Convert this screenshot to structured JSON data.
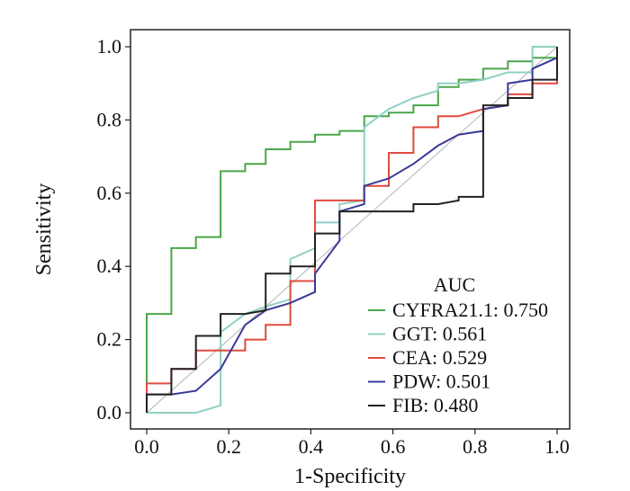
{
  "chart_data": {
    "type": "line",
    "title": "",
    "xlabel": "1-Specificity",
    "ylabel": "Sensitivity",
    "xlim": [
      0.0,
      1.0
    ],
    "ylim": [
      0.0,
      1.0
    ],
    "xticks": [
      0.0,
      0.2,
      0.4,
      0.6,
      0.8,
      1.0
    ],
    "yticks": [
      0.0,
      0.2,
      0.4,
      0.6,
      0.8,
      1.0
    ],
    "x_tick_labels": [
      "0.0",
      "0.2",
      "0.4",
      "0.6",
      "0.8",
      "1.0"
    ],
    "y_tick_labels": [
      "0.0",
      "0.2",
      "0.4",
      "0.6",
      "0.8",
      "1.0"
    ],
    "grid": false,
    "reference_line": {
      "from": [
        0,
        0
      ],
      "to": [
        1,
        1
      ],
      "color": "#c0c0c0"
    },
    "legend": {
      "title": "AUC",
      "position": "bottom-right"
    },
    "series": [
      {
        "name": "CYFRA21.1",
        "auc": "0.750",
        "label": "CYFRA21.1: 0.750",
        "color": "#4aa64a",
        "points": [
          [
            0,
            0
          ],
          [
            0,
            0.27
          ],
          [
            0.06,
            0.27
          ],
          [
            0.06,
            0.45
          ],
          [
            0.12,
            0.45
          ],
          [
            0.12,
            0.48
          ],
          [
            0.18,
            0.48
          ],
          [
            0.18,
            0.66
          ],
          [
            0.24,
            0.66
          ],
          [
            0.24,
            0.68
          ],
          [
            0.29,
            0.68
          ],
          [
            0.29,
            0.72
          ],
          [
            0.35,
            0.72
          ],
          [
            0.35,
            0.74
          ],
          [
            0.41,
            0.74
          ],
          [
            0.41,
            0.76
          ],
          [
            0.47,
            0.76
          ],
          [
            0.47,
            0.77
          ],
          [
            0.53,
            0.77
          ],
          [
            0.53,
            0.81
          ],
          [
            0.59,
            0.81
          ],
          [
            0.59,
            0.82
          ],
          [
            0.65,
            0.82
          ],
          [
            0.65,
            0.84
          ],
          [
            0.71,
            0.84
          ],
          [
            0.71,
            0.89
          ],
          [
            0.76,
            0.89
          ],
          [
            0.76,
            0.91
          ],
          [
            0.82,
            0.91
          ],
          [
            0.82,
            0.94
          ],
          [
            0.88,
            0.94
          ],
          [
            0.88,
            0.96
          ],
          [
            0.94,
            0.96
          ],
          [
            0.94,
            0.97
          ],
          [
            1,
            0.97
          ],
          [
            1,
            1
          ]
        ]
      },
      {
        "name": "GGT",
        "auc": "0.561",
        "label": "GGT: 0.561",
        "color": "#8fd0c4",
        "points": [
          [
            0,
            0
          ],
          [
            0.12,
            0
          ],
          [
            0.18,
            0.02
          ],
          [
            0.18,
            0.22
          ],
          [
            0.24,
            0.27
          ],
          [
            0.29,
            0.29
          ],
          [
            0.35,
            0.31
          ],
          [
            0.35,
            0.42
          ],
          [
            0.41,
            0.45
          ],
          [
            0.41,
            0.52
          ],
          [
            0.47,
            0.52
          ],
          [
            0.47,
            0.57
          ],
          [
            0.53,
            0.58
          ],
          [
            0.53,
            0.78
          ],
          [
            0.59,
            0.83
          ],
          [
            0.65,
            0.86
          ],
          [
            0.71,
            0.88
          ],
          [
            0.71,
            0.9
          ],
          [
            0.76,
            0.9
          ],
          [
            0.82,
            0.91
          ],
          [
            0.88,
            0.93
          ],
          [
            0.94,
            0.93
          ],
          [
            0.94,
            1
          ],
          [
            1,
            1
          ]
        ]
      },
      {
        "name": "CEA",
        "auc": "0.529",
        "label": "CEA: 0.529",
        "color": "#e04b3f",
        "points": [
          [
            0,
            0
          ],
          [
            0,
            0.08
          ],
          [
            0.06,
            0.08
          ],
          [
            0.06,
            0.12
          ],
          [
            0.12,
            0.12
          ],
          [
            0.12,
            0.17
          ],
          [
            0.18,
            0.17
          ],
          [
            0.24,
            0.17
          ],
          [
            0.24,
            0.2
          ],
          [
            0.29,
            0.2
          ],
          [
            0.29,
            0.24
          ],
          [
            0.35,
            0.24
          ],
          [
            0.35,
            0.36
          ],
          [
            0.41,
            0.36
          ],
          [
            0.41,
            0.58
          ],
          [
            0.47,
            0.58
          ],
          [
            0.53,
            0.58
          ],
          [
            0.53,
            0.62
          ],
          [
            0.59,
            0.62
          ],
          [
            0.59,
            0.71
          ],
          [
            0.65,
            0.71
          ],
          [
            0.65,
            0.78
          ],
          [
            0.71,
            0.78
          ],
          [
            0.71,
            0.81
          ],
          [
            0.76,
            0.81
          ],
          [
            0.82,
            0.83
          ],
          [
            0.88,
            0.84
          ],
          [
            0.88,
            0.87
          ],
          [
            0.94,
            0.87
          ],
          [
            0.94,
            0.9
          ],
          [
            1,
            0.9
          ],
          [
            1,
            1
          ]
        ]
      },
      {
        "name": "PDW",
        "auc": "0.501",
        "label": "PDW: 0.501",
        "color": "#3a3a9a",
        "points": [
          [
            0,
            0
          ],
          [
            0,
            0.05
          ],
          [
            0.06,
            0.05
          ],
          [
            0.12,
            0.06
          ],
          [
            0.18,
            0.12
          ],
          [
            0.24,
            0.24
          ],
          [
            0.29,
            0.28
          ],
          [
            0.35,
            0.3
          ],
          [
            0.41,
            0.33
          ],
          [
            0.41,
            0.38
          ],
          [
            0.47,
            0.47
          ],
          [
            0.47,
            0.55
          ],
          [
            0.53,
            0.57
          ],
          [
            0.53,
            0.62
          ],
          [
            0.59,
            0.64
          ],
          [
            0.65,
            0.68
          ],
          [
            0.71,
            0.73
          ],
          [
            0.76,
            0.76
          ],
          [
            0.82,
            0.77
          ],
          [
            0.82,
            0.83
          ],
          [
            0.88,
            0.84
          ],
          [
            0.88,
            0.9
          ],
          [
            0.94,
            0.91
          ],
          [
            0.94,
            0.94
          ],
          [
            1,
            0.97
          ],
          [
            1,
            1
          ]
        ]
      },
      {
        "name": "FIB",
        "auc": "0.480",
        "label": "FIB: 0.480",
        "color": "#222222",
        "points": [
          [
            0,
            0
          ],
          [
            0,
            0.05
          ],
          [
            0.06,
            0.05
          ],
          [
            0.06,
            0.12
          ],
          [
            0.12,
            0.12
          ],
          [
            0.12,
            0.21
          ],
          [
            0.18,
            0.21
          ],
          [
            0.18,
            0.27
          ],
          [
            0.24,
            0.27
          ],
          [
            0.29,
            0.28
          ],
          [
            0.29,
            0.38
          ],
          [
            0.35,
            0.38
          ],
          [
            0.35,
            0.4
          ],
          [
            0.41,
            0.4
          ],
          [
            0.41,
            0.49
          ],
          [
            0.47,
            0.49
          ],
          [
            0.47,
            0.55
          ],
          [
            0.53,
            0.55
          ],
          [
            0.65,
            0.55
          ],
          [
            0.65,
            0.57
          ],
          [
            0.71,
            0.57
          ],
          [
            0.76,
            0.58
          ],
          [
            0.76,
            0.59
          ],
          [
            0.82,
            0.59
          ],
          [
            0.82,
            0.84
          ],
          [
            0.88,
            0.84
          ],
          [
            0.88,
            0.86
          ],
          [
            0.94,
            0.86
          ],
          [
            0.94,
            0.91
          ],
          [
            1,
            0.91
          ],
          [
            1,
            1
          ]
        ]
      }
    ]
  }
}
